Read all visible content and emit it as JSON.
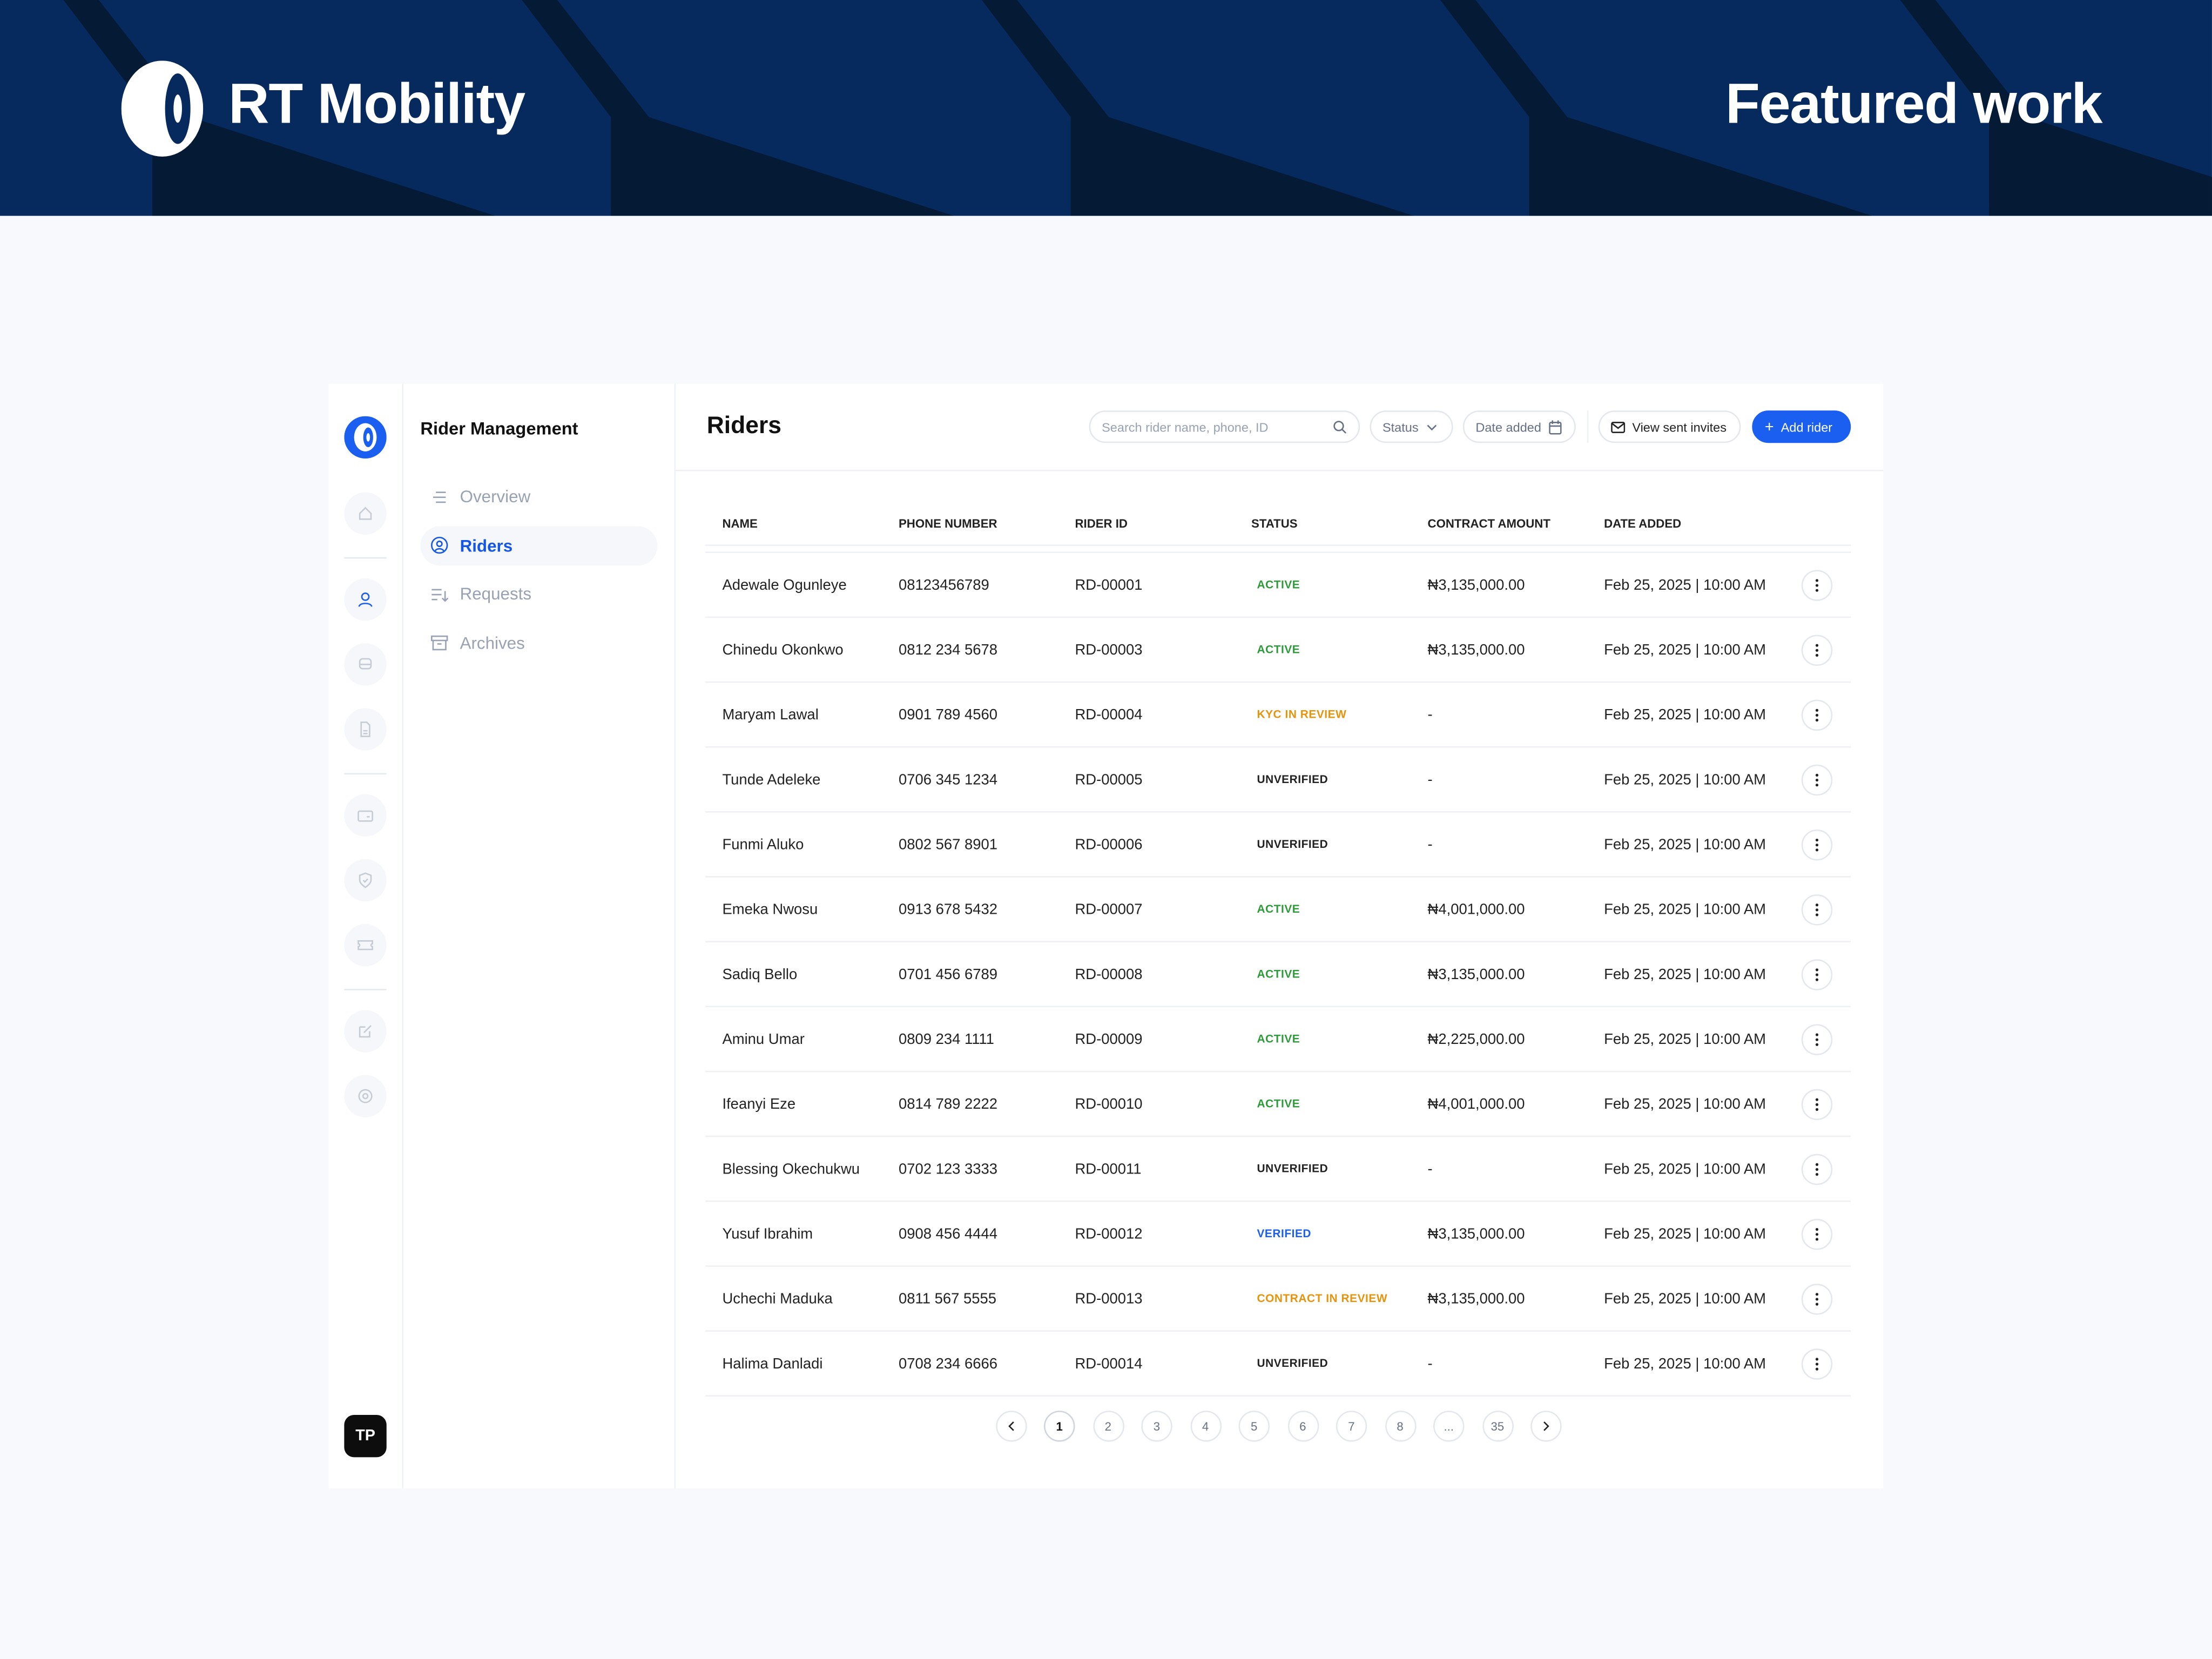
{
  "banner": {
    "brand": "RT Mobility",
    "tagline": "Featured work",
    "colors": {
      "background": "#062a5e",
      "shade": "#041a35"
    }
  },
  "rail": {
    "icons": [
      "logo-icon",
      "home-icon",
      "user-icon",
      "car-icon",
      "document-icon",
      "id-card-icon",
      "shield-icon",
      "ticket-icon",
      "edit-icon",
      "settings-icon"
    ],
    "avatar": "TP",
    "accent": "#1a5ff0"
  },
  "subnav": {
    "title": "Rider Management",
    "items": [
      {
        "label": "Overview",
        "icon": "list-icon"
      },
      {
        "label": "Riders",
        "icon": "user-circle-icon",
        "active": true
      },
      {
        "label": "Requests",
        "icon": "sort-icon"
      },
      {
        "label": "Archives",
        "icon": "archive-icon"
      }
    ]
  },
  "header": {
    "title": "Riders",
    "search_placeholder": "Search rider name, phone, ID",
    "status_filter": "Status",
    "date_filter": "Date added",
    "invites": "View sent invites",
    "add": "Add rider"
  },
  "table": {
    "columns": [
      "NAME",
      "PHONE NUMBER",
      "RIDER ID",
      "STATUS",
      "CONTRACT AMOUNT",
      "DATE ADDED"
    ],
    "rows": [
      [
        "Adewale Ogunleye",
        "08123456789",
        "RD-00001",
        "ACTIVE",
        "₦3,135,000.00",
        "Feb 25, 2025 | 10:00 AM"
      ],
      [
        "Chinedu Okonkwo",
        "0812 234 5678",
        "RD-00003",
        "ACTIVE",
        "₦3,135,000.00",
        "Feb 25, 2025 | 10:00 AM"
      ],
      [
        "Maryam Lawal",
        "0901 789 4560",
        "RD-00004",
        "KYC IN REVIEW",
        "-",
        "Feb 25, 2025 | 10:00 AM"
      ],
      [
        "Tunde Adeleke",
        "0706 345 1234",
        "RD-00005",
        "UNVERIFIED",
        "-",
        "Feb 25, 2025 | 10:00 AM"
      ],
      [
        "Funmi Aluko",
        "0802 567 8901",
        "RD-00006",
        "UNVERIFIED",
        "-",
        "Feb 25, 2025 | 10:00 AM"
      ],
      [
        "Emeka Nwosu",
        "0913 678 5432",
        "RD-00007",
        "ACTIVE",
        "₦4,001,000.00",
        "Feb 25, 2025 | 10:00 AM"
      ],
      [
        "Sadiq Bello",
        "0701 456 6789",
        "RD-00008",
        "ACTIVE",
        "₦3,135,000.00",
        "Feb 25, 2025 | 10:00 AM"
      ],
      [
        "Aminu Umar",
        "0809 234 1111",
        "RD-00009",
        "ACTIVE",
        "₦2,225,000.00",
        "Feb 25, 2025 | 10:00 AM"
      ],
      [
        "Ifeanyi Eze",
        "0814 789 2222",
        "RD-00010",
        "ACTIVE",
        "₦4,001,000.00",
        "Feb 25, 2025 | 10:00 AM"
      ],
      [
        "Blessing Okechukwu",
        "0702 123 3333",
        "RD-00011",
        "UNVERIFIED",
        "-",
        "Feb 25, 2025 | 10:00 AM"
      ],
      [
        "Yusuf Ibrahim",
        "0908 456 4444",
        "RD-00012",
        "VERIFIED",
        "₦3,135,000.00",
        "Feb 25, 2025 | 10:00 AM"
      ],
      [
        "Uchechi Maduka",
        "0811 567 5555",
        "RD-00013",
        "CONTRACT IN REVIEW",
        "₦3,135,000.00",
        "Feb 25, 2025 | 10:00 AM"
      ],
      [
        "Halima Danladi",
        "0708 234 6666",
        "RD-00014",
        "UNVERIFIED",
        "-",
        "Feb 25, 2025 | 10:00 AM"
      ]
    ],
    "status_colors": {
      "ACTIVE": "#2e9b3a",
      "KYC IN REVIEW": "#e8930c",
      "UNVERIFIED": "#222222",
      "VERIFIED": "#1a5ff0",
      "CONTRACT IN REVIEW": "#e8930c"
    }
  },
  "pagination": {
    "pages": [
      "1",
      "2",
      "3",
      "4",
      "5",
      "6",
      "7",
      "8",
      "...",
      "35"
    ],
    "current": "1"
  }
}
